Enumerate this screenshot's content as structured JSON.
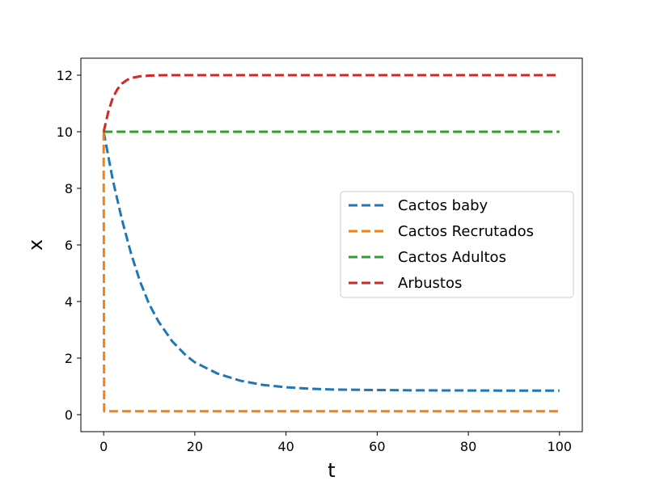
{
  "chart_data": {
    "type": "line",
    "title": "",
    "xlabel": "t",
    "ylabel": "x",
    "xlim": [
      -5,
      105
    ],
    "ylim": [
      -0.6,
      12.6
    ],
    "x_ticks": [
      0,
      20,
      40,
      60,
      80,
      100
    ],
    "y_ticks": [
      0,
      2,
      4,
      6,
      8,
      10,
      12
    ],
    "grid": false,
    "legend_position": "center-right",
    "series": [
      {
        "name": "Cactos baby",
        "color": "#1f77b4",
        "style": "dashed",
        "x": [
          0,
          2,
          4,
          6,
          8,
          10,
          12,
          15,
          18,
          20,
          25,
          30,
          35,
          40,
          45,
          50,
          60,
          70,
          80,
          90,
          100
        ],
        "y": [
          10.0,
          8.3,
          6.9,
          5.7,
          4.7,
          3.9,
          3.3,
          2.6,
          2.1,
          1.85,
          1.45,
          1.2,
          1.05,
          0.97,
          0.92,
          0.89,
          0.87,
          0.86,
          0.855,
          0.85,
          0.85
        ]
      },
      {
        "name": "Cactos Recrutados",
        "color": "#ff7f0e",
        "style": "dashed",
        "x": [
          0,
          0.05,
          0.1,
          100
        ],
        "y": [
          10.0,
          5.0,
          0.12,
          0.12
        ]
      },
      {
        "name": "Cactos Adultos",
        "color": "#2ca02c",
        "style": "dashed",
        "x": [
          0,
          100
        ],
        "y": [
          10.0,
          10.0
        ]
      },
      {
        "name": "Arbustos",
        "color": "#d62728",
        "style": "dashed",
        "x": [
          0,
          1,
          2,
          3,
          4,
          5,
          6,
          8,
          10,
          12,
          15,
          20,
          30,
          50,
          100
        ],
        "y": [
          10.0,
          10.7,
          11.2,
          11.5,
          11.7,
          11.82,
          11.9,
          11.96,
          11.985,
          11.995,
          12.0,
          12.0,
          12.0,
          12.0,
          12.0
        ]
      }
    ]
  }
}
